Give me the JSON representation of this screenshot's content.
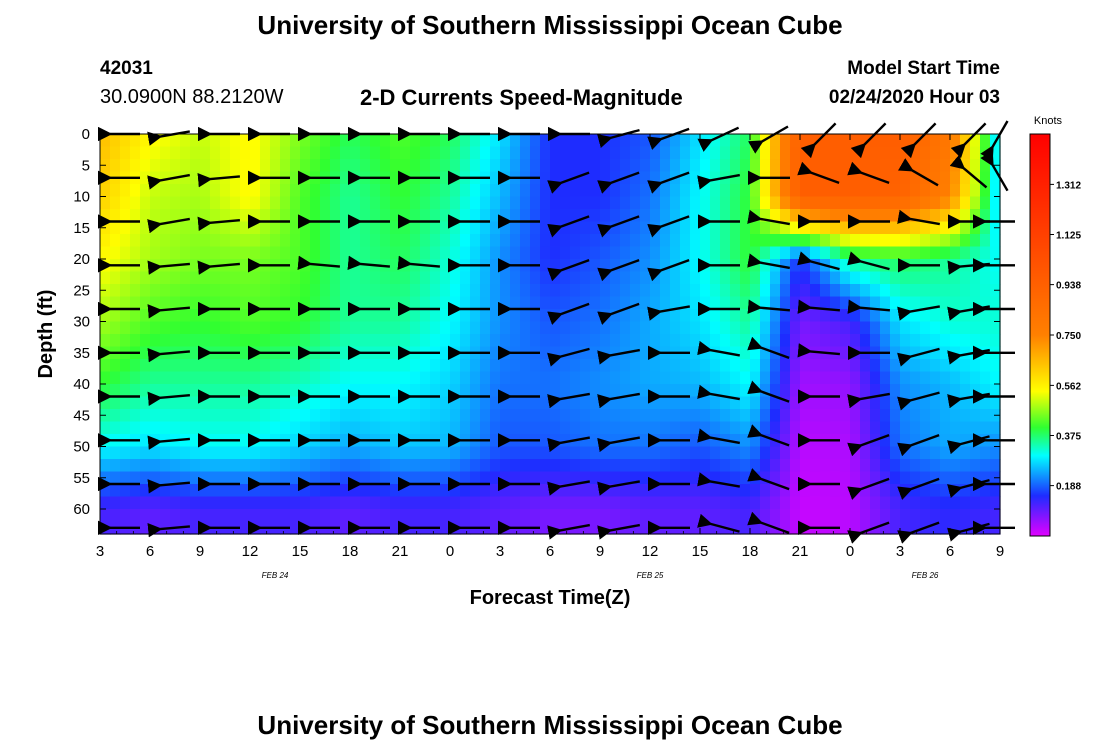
{
  "header": {
    "title": "University of Southern Mississippi Ocean Cube",
    "station_id": "42031",
    "coords": "30.0900N 88.2120W",
    "plot_title": "2-D Currents Speed-Magnitude",
    "model_start_label": "Model Start Time",
    "model_start_value": "02/24/2020 Hour 03",
    "footer_title": "University of Southern Mississippi Ocean Cube"
  },
  "chart_data": {
    "type": "heatmap",
    "title": "2-D Currents Speed-Magnitude",
    "xlabel": "Forecast Time(Z)",
    "ylabel": "Depth (ft)",
    "x_tick_labels": [
      "3",
      "6",
      "9",
      "12",
      "15",
      "18",
      "21",
      "0",
      "3",
      "6",
      "9",
      "12",
      "15",
      "18",
      "21",
      "0",
      "3",
      "6",
      "9"
    ],
    "x_range_hours": [
      0,
      54
    ],
    "date_labels": [
      {
        "text": "FEB 24",
        "hour": 10.5
      },
      {
        "text": "FEB 25",
        "hour": 33
      },
      {
        "text": "FEB 26",
        "hour": 49.5
      }
    ],
    "y_tick_labels": [
      0,
      5,
      10,
      15,
      20,
      25,
      30,
      35,
      40,
      45,
      50,
      55,
      60
    ],
    "y_range": [
      0,
      64
    ],
    "y_inverted": true,
    "colorbar": {
      "unit": "Knots",
      "range": [
        0,
        1.5
      ],
      "tick_labels": [
        "0.188",
        "0.375",
        "0.562",
        "0.750",
        "0.938",
        "1.125",
        "1.312"
      ]
    },
    "colors": {
      "low": "#e000ff",
      "blue": "#1e2cff",
      "cyan": "#00ffff",
      "green": "#30ff30",
      "yellow": "#ffff00",
      "orange": "#ff8000",
      "red": "#ff0000"
    },
    "grid_hours": [
      0,
      3,
      6,
      9,
      12,
      15,
      18,
      21,
      24,
      27,
      30,
      33,
      36,
      39,
      42,
      45,
      48,
      51,
      54
    ],
    "grid_depths": [
      0,
      10,
      20,
      30,
      40,
      50,
      60
    ],
    "speed_grid": [
      [
        0.65,
        0.55,
        0.5,
        0.55,
        0.45,
        0.38,
        0.42,
        0.38,
        0.28,
        0.15,
        0.15,
        0.18,
        0.28,
        0.38,
        0.95,
        0.95,
        0.95,
        0.8,
        0.25
      ],
      [
        0.62,
        0.5,
        0.48,
        0.55,
        0.42,
        0.35,
        0.4,
        0.35,
        0.25,
        0.15,
        0.15,
        0.2,
        0.3,
        0.4,
        0.95,
        0.95,
        0.92,
        0.75,
        0.25
      ],
      [
        0.55,
        0.48,
        0.45,
        0.45,
        0.42,
        0.35,
        0.38,
        0.32,
        0.22,
        0.15,
        0.18,
        0.22,
        0.3,
        0.4,
        0.15,
        0.35,
        0.38,
        0.35,
        0.3
      ],
      [
        0.48,
        0.42,
        0.4,
        0.42,
        0.4,
        0.35,
        0.35,
        0.3,
        0.22,
        0.18,
        0.2,
        0.24,
        0.28,
        0.35,
        0.08,
        0.12,
        0.28,
        0.32,
        0.32
      ],
      [
        0.4,
        0.35,
        0.35,
        0.35,
        0.33,
        0.3,
        0.3,
        0.27,
        0.2,
        0.2,
        0.22,
        0.24,
        0.25,
        0.3,
        0.05,
        0.06,
        0.22,
        0.25,
        0.3
      ],
      [
        0.3,
        0.28,
        0.3,
        0.3,
        0.27,
        0.24,
        0.26,
        0.25,
        0.18,
        0.18,
        0.2,
        0.2,
        0.18,
        0.22,
        0.03,
        0.04,
        0.2,
        0.24,
        0.22
      ],
      [
        0.12,
        0.1,
        0.12,
        0.12,
        0.12,
        0.1,
        0.12,
        0.12,
        0.1,
        0.08,
        0.08,
        0.1,
        0.1,
        0.12,
        0.02,
        0.03,
        0.12,
        0.14,
        0.12
      ]
    ],
    "arrow_depths": [
      0,
      7,
      14,
      21,
      28,
      35,
      42,
      49,
      56,
      63
    ],
    "arrow_hours": [
      1.5,
      4.5,
      7.5,
      10.5,
      13.5,
      16.5,
      19.5,
      22.5,
      25.5,
      28.5,
      31.5,
      34.5,
      37.5,
      40.5,
      43.5,
      46.5,
      49.5,
      52.5,
      54
    ],
    "arrow_direction_deg": [
      [
        180,
        190,
        180,
        180,
        180,
        180,
        180,
        180,
        180,
        180,
        195,
        200,
        205,
        210,
        225,
        225,
        225,
        225,
        240
      ],
      [
        180,
        190,
        185,
        180,
        180,
        180,
        180,
        180,
        180,
        200,
        200,
        200,
        190,
        180,
        160,
        160,
        150,
        140,
        120
      ],
      [
        180,
        190,
        185,
        180,
        180,
        180,
        180,
        180,
        180,
        200,
        200,
        200,
        180,
        170,
        180,
        180,
        170,
        180,
        180
      ],
      [
        180,
        185,
        185,
        180,
        175,
        175,
        175,
        180,
        180,
        200,
        200,
        200,
        180,
        170,
        165,
        165,
        180,
        185,
        180
      ],
      [
        180,
        185,
        180,
        180,
        180,
        180,
        180,
        180,
        180,
        200,
        200,
        190,
        180,
        175,
        175,
        175,
        190,
        190,
        180
      ],
      [
        180,
        185,
        180,
        180,
        180,
        180,
        180,
        180,
        180,
        195,
        190,
        180,
        170,
        160,
        175,
        180,
        195,
        190,
        180
      ],
      [
        180,
        185,
        180,
        180,
        180,
        180,
        180,
        180,
        180,
        190,
        190,
        180,
        170,
        160,
        180,
        190,
        195,
        190,
        180
      ],
      [
        180,
        185,
        180,
        180,
        180,
        180,
        180,
        180,
        180,
        190,
        190,
        180,
        170,
        160,
        180,
        200,
        200,
        195,
        180
      ],
      [
        180,
        185,
        180,
        180,
        180,
        180,
        180,
        180,
        180,
        190,
        190,
        180,
        170,
        160,
        180,
        200,
        200,
        195,
        180
      ],
      [
        180,
        185,
        180,
        180,
        180,
        180,
        180,
        180,
        180,
        190,
        190,
        180,
        165,
        160,
        180,
        200,
        200,
        195,
        180
      ]
    ]
  }
}
